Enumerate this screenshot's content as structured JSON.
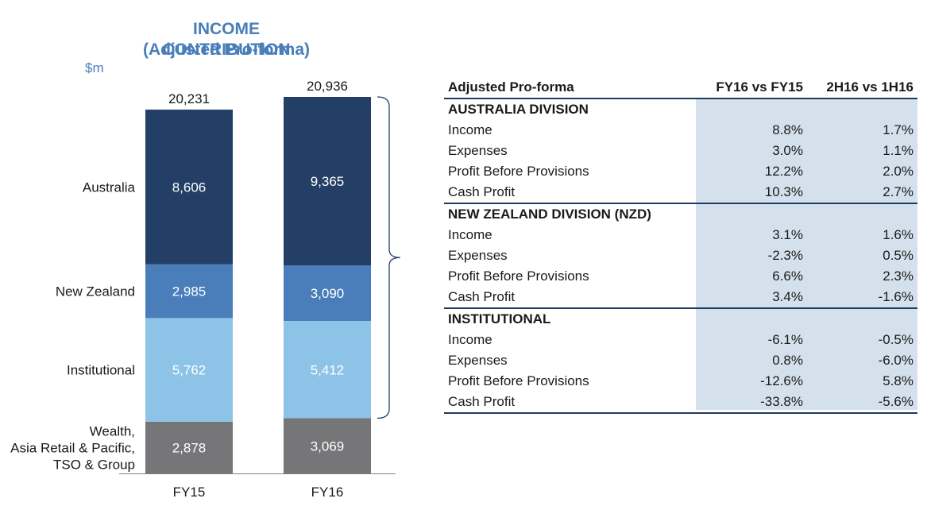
{
  "chart_data": {
    "type": "bar",
    "stacked": true,
    "title": "INCOME CONTRIBUTION",
    "subtitle": "(Adjusted Pro-forma)",
    "unit": "$m",
    "categories": [
      "FY15",
      "FY16"
    ],
    "totals": [
      "20,231",
      "20,936"
    ],
    "series": [
      {
        "name": "Wealth,\nAsia Retail & Pacific,\nTSO & Group",
        "lines": [
          "Wealth,",
          "Asia Retail & Pacific,",
          "TSO & Group"
        ],
        "values": [
          2878,
          3069
        ],
        "labels": [
          "2,878",
          "3,069"
        ],
        "color": "#767678"
      },
      {
        "name": "Institutional",
        "lines": [
          "Institutional"
        ],
        "values": [
          5762,
          5412
        ],
        "labels": [
          "5,762",
          "5,412"
        ],
        "color": "#8dc3e6"
      },
      {
        "name": "New Zealand",
        "lines": [
          "New Zealand"
        ],
        "values": [
          2985,
          3090
        ],
        "labels": [
          "2,985",
          "3,090"
        ],
        "color": "#4a7ebb"
      },
      {
        "name": "Australia",
        "lines": [
          "Australia"
        ],
        "values": [
          8606,
          9365
        ],
        "labels": [
          "8,606",
          "9,365"
        ],
        "color": "#243f66"
      }
    ]
  },
  "table": {
    "header": [
      "Adjusted Pro-forma",
      "FY16 vs FY15",
      "2H16 vs 1H16"
    ],
    "sections": [
      {
        "title": "AUSTRALIA DIVISION",
        "rows": [
          [
            "Income",
            "8.8%",
            "1.7%"
          ],
          [
            "Expenses",
            "3.0%",
            "1.1%"
          ],
          [
            "Profit Before Provisions",
            "12.2%",
            "2.0%"
          ],
          [
            "Cash Profit",
            "10.3%",
            "2.7%"
          ]
        ]
      },
      {
        "title": "NEW ZEALAND DIVISION (NZD)",
        "rows": [
          [
            "Income",
            "3.1%",
            "1.6%"
          ],
          [
            "Expenses",
            "-2.3%",
            "0.5%"
          ],
          [
            "Profit Before Provisions",
            "6.6%",
            "2.3%"
          ],
          [
            "Cash Profit",
            "3.4%",
            "-1.6%"
          ]
        ]
      },
      {
        "title": "INSTITUTIONAL",
        "rows": [
          [
            "Income",
            "-6.1%",
            "-0.5%"
          ],
          [
            "Expenses",
            "0.8%",
            "-6.0%"
          ],
          [
            "Profit Before Provisions",
            "-12.6%",
            "5.8%"
          ],
          [
            "Cash Profit",
            "-33.8%",
            "-5.6%"
          ]
        ]
      }
    ]
  }
}
